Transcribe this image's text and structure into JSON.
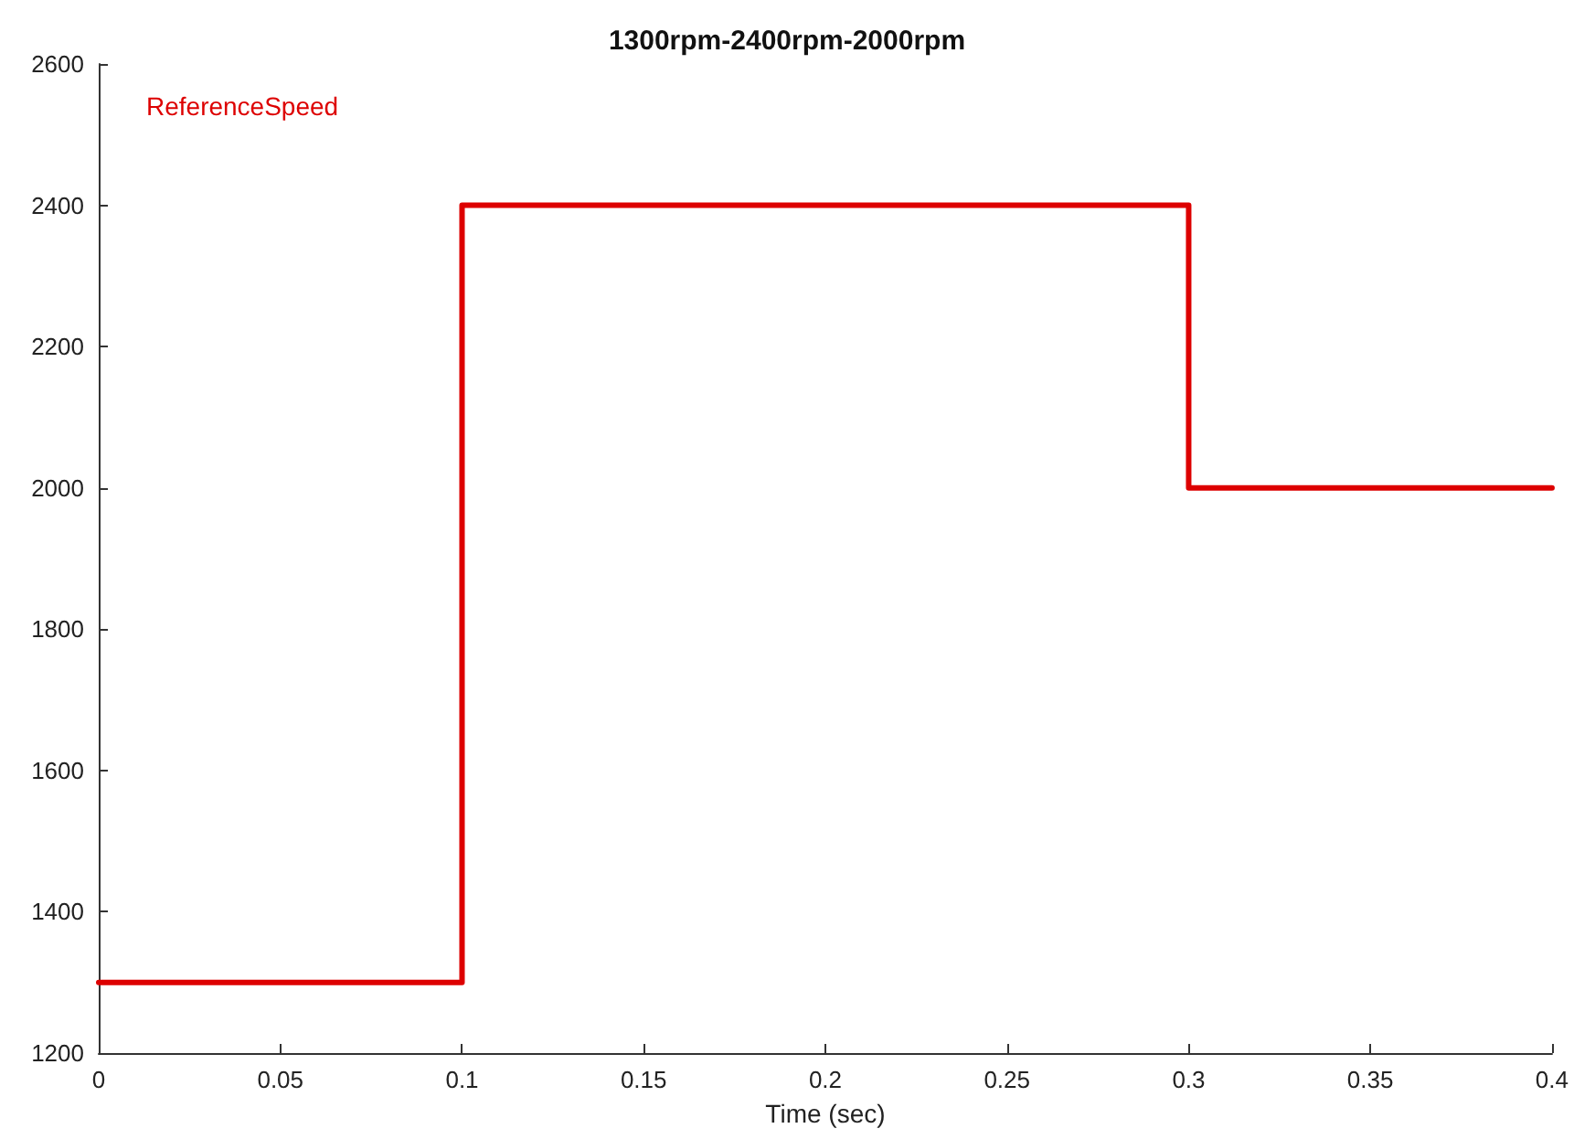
{
  "chart_data": {
    "type": "step",
    "title": "1300rpm-2400rpm-2000rpm",
    "xlabel": "Time (sec)",
    "x": [
      0,
      0.1,
      0.3,
      0.4
    ],
    "series": [
      {
        "name": "ReferenceSpeed",
        "color": "#dd0000",
        "values": [
          1300,
          2400,
          2000,
          2000
        ]
      }
    ],
    "xlim": [
      0,
      0.4
    ],
    "xticks": [
      0,
      0.05,
      0.1,
      0.15,
      0.2,
      0.25,
      0.3,
      0.35,
      0.4
    ],
    "ylim": [
      1200,
      2600
    ],
    "yticks": [
      1200,
      1400,
      1600,
      1800,
      2000,
      2200,
      2400,
      2600
    ],
    "legend": "top left"
  }
}
